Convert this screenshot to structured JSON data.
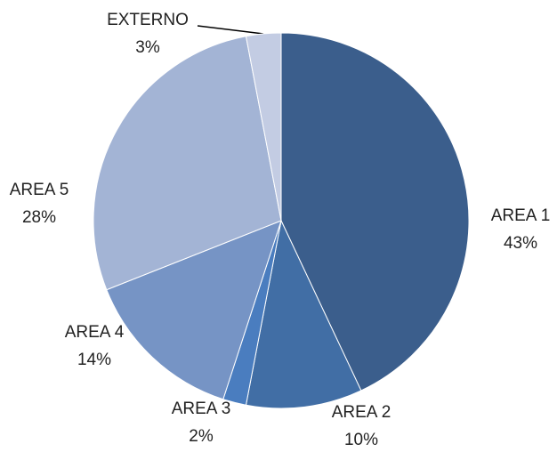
{
  "chart_data": {
    "type": "pie",
    "categories": [
      "AREA 1",
      "AREA 2",
      "AREA 3",
      "AREA 4",
      "AREA 5",
      "EXTERNO"
    ],
    "values": [
      43,
      10,
      2,
      14,
      28,
      3
    ],
    "value_labels": [
      "43%",
      "10%",
      "2%",
      "14%",
      "28%",
      "3%"
    ],
    "colors": [
      "#3b5e8c",
      "#416ea5",
      "#4a7dbf",
      "#7694c5",
      "#a3b4d5",
      "#c3cce3"
    ]
  }
}
